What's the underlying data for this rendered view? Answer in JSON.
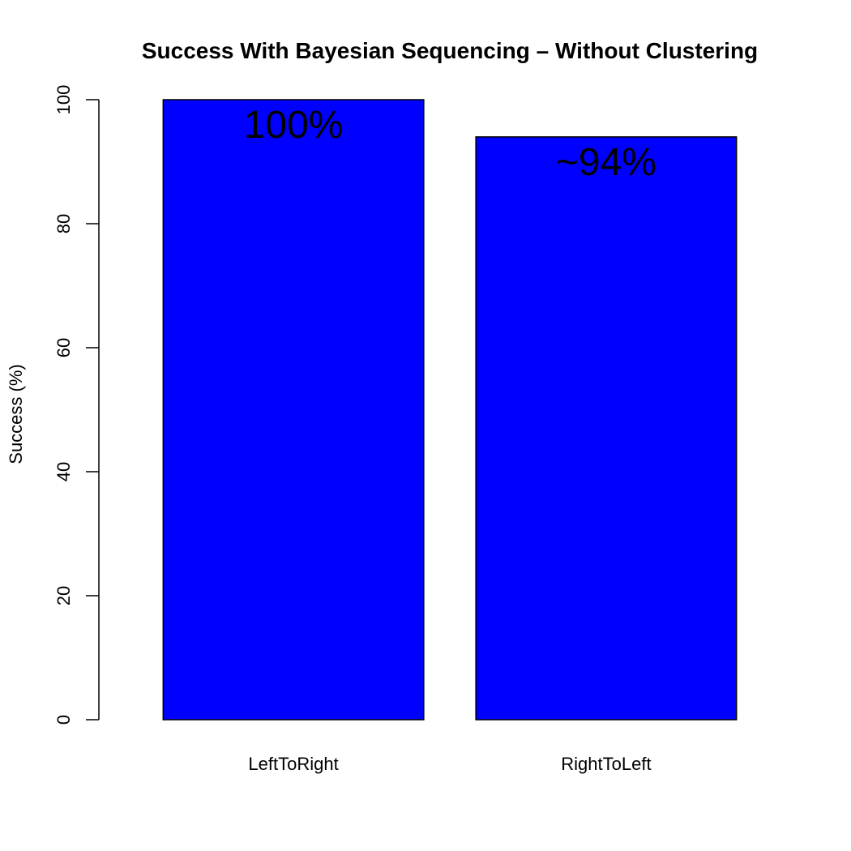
{
  "chart_data": {
    "type": "bar",
    "title": "Success With Bayesian Sequencing – Without Clustering",
    "xlabel": "",
    "ylabel": "Success (%)",
    "categories": [
      "LeftToRight",
      "RightToLeft"
    ],
    "values": [
      100,
      94
    ],
    "bar_labels": [
      "100%",
      "~94%"
    ],
    "ylim": [
      0,
      100
    ],
    "yticks": [
      "0",
      "20",
      "40",
      "60",
      "80",
      "100"
    ],
    "ytick_values": [
      0,
      20,
      40,
      60,
      80,
      100
    ],
    "grid": false,
    "bar_color": "#0000FF"
  }
}
